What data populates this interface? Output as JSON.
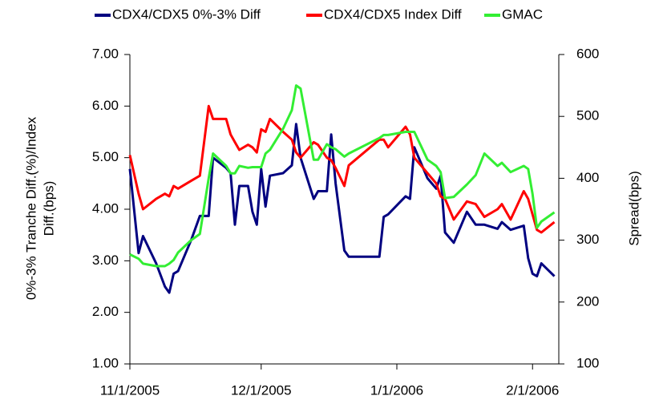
{
  "chart_data": {
    "type": "line",
    "ylabel": [
      "0%-3% Tranche Diff.(%)/Index",
      "Diff.(bps)"
    ],
    "y2label": "Spread(bps)",
    "x": [
      "2005-11-01",
      "2005-11-03",
      "2005-11-04",
      "2005-11-07",
      "2005-11-09",
      "2005-11-10",
      "2005-11-11",
      "2005-11-12",
      "2005-11-15",
      "2005-11-17",
      "2005-11-19",
      "2005-11-20",
      "2005-11-23",
      "2005-11-24",
      "2005-11-25",
      "2005-11-26",
      "2005-11-28",
      "2005-11-29",
      "2005-11-30",
      "2005-12-01",
      "2005-12-02",
      "2005-12-03",
      "2005-12-06",
      "2005-12-08",
      "2005-12-09",
      "2005-12-10",
      "2005-12-13",
      "2005-12-14",
      "2005-12-16",
      "2005-12-17",
      "2005-12-18",
      "2005-12-20",
      "2005-12-21",
      "2005-12-28",
      "2005-12-29",
      "2005-12-30",
      "2006-01-03",
      "2006-01-04",
      "2006-01-05",
      "2006-01-08",
      "2006-01-10",
      "2006-01-11",
      "2006-01-12",
      "2006-01-14",
      "2006-01-17",
      "2006-01-19",
      "2006-01-21",
      "2006-01-24",
      "2006-01-25",
      "2006-01-27",
      "2006-01-30",
      "2006-01-31",
      "2006-02-01",
      "2006-02-02",
      "2006-02-03",
      "2006-02-06"
    ],
    "xlim": [
      "2005-11-01",
      "2006-02-07"
    ],
    "xticks": [
      {
        "value": "2005-11-01",
        "label": "11/1/2005"
      },
      {
        "value": "2005-12-01",
        "label": "12/1/2005"
      },
      {
        "value": "2006-01-01",
        "label": "1/1/2006"
      },
      {
        "value": "2006-02-01",
        "label": "2/1/2006"
      }
    ],
    "ylim": [
      1,
      7
    ],
    "yticks": [
      {
        "value": 1,
        "label": "1.00"
      },
      {
        "value": 2,
        "label": "2.00"
      },
      {
        "value": 3,
        "label": "3.00"
      },
      {
        "value": 4,
        "label": "4.00"
      },
      {
        "value": 5,
        "label": "5.00"
      },
      {
        "value": 6,
        "label": "6.00"
      },
      {
        "value": 7,
        "label": "7.00"
      }
    ],
    "y2lim": [
      100,
      600
    ],
    "y2ticks": [
      100,
      200,
      300,
      400,
      500,
      600
    ],
    "legend": "top",
    "series": [
      {
        "name": "CDX4/CDX5 0%-3% Diff",
        "color": "#000080",
        "values": [
          4.78,
          3.15,
          3.48,
          2.95,
          2.5,
          2.38,
          2.75,
          2.8,
          3.4,
          3.87,
          3.87,
          5.0,
          4.8,
          4.7,
          3.7,
          4.45,
          4.45,
          3.95,
          3.7,
          4.78,
          4.05,
          4.65,
          4.7,
          4.85,
          5.65,
          5.0,
          4.2,
          4.35,
          4.35,
          5.45,
          4.5,
          3.2,
          3.08,
          3.08,
          3.85,
          3.9,
          4.25,
          4.2,
          5.2,
          4.6,
          4.4,
          4.65,
          3.55,
          3.35,
          3.95,
          3.7,
          3.7,
          3.62,
          3.75,
          3.6,
          3.68,
          3.05,
          2.75,
          2.7,
          2.95,
          2.7
        ]
      },
      {
        "name": "CDX4/CDX5 Index Diff",
        "color": "#ff0000",
        "values": [
          5.05,
          4.3,
          4.0,
          4.2,
          4.3,
          4.25,
          4.45,
          4.4,
          4.55,
          4.65,
          6.0,
          5.75,
          5.75,
          5.45,
          5.3,
          5.15,
          5.25,
          5.2,
          5.1,
          5.55,
          5.5,
          5.75,
          5.5,
          5.35,
          5.1,
          5.0,
          5.3,
          5.25,
          5.0,
          4.95,
          4.8,
          4.45,
          4.85,
          5.35,
          5.35,
          5.2,
          5.6,
          5.45,
          5.0,
          4.7,
          4.5,
          4.25,
          4.2,
          3.8,
          4.15,
          4.1,
          3.85,
          4.0,
          4.1,
          3.8,
          4.35,
          4.2,
          3.9,
          3.6,
          3.55,
          3.75
        ]
      },
      {
        "name": "GMAC",
        "color": "#33ee33",
        "axis": "y2",
        "values": [
          277,
          270,
          262,
          258,
          258,
          262,
          268,
          280,
          300,
          310,
          400,
          440,
          420,
          408,
          408,
          420,
          417,
          418,
          418,
          418,
          440,
          446,
          480,
          510,
          550,
          545,
          430,
          430,
          455,
          450,
          447,
          435,
          440,
          465,
          470,
          470,
          475,
          475,
          475,
          430,
          420,
          410,
          368,
          370,
          390,
          405,
          440,
          420,
          425,
          410,
          420,
          415,
          375,
          320,
          330,
          345
        ]
      }
    ]
  }
}
